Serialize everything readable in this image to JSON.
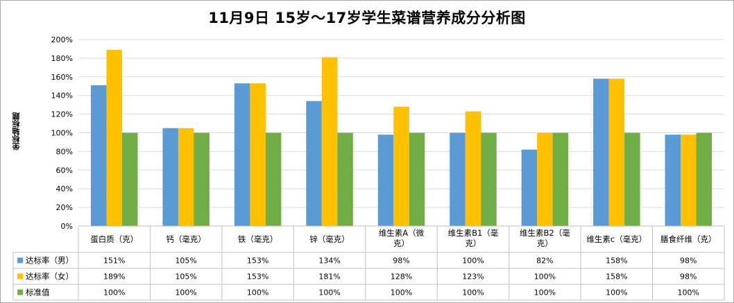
{
  "chart_data": {
    "type": "bar",
    "title": "11月9日  15岁～17岁学生菜谱营养成分分析图",
    "ylabel": "坐标轴标题",
    "xlabel": "",
    "ylim": [
      0,
      200
    ],
    "yticks": [
      "0%",
      "20%",
      "40%",
      "60%",
      "80%",
      "100%",
      "120%",
      "140%",
      "160%",
      "180%",
      "200%"
    ],
    "grid": true,
    "legend": "data-table",
    "categories": [
      [
        "蛋白质（克）"
      ],
      [
        "钙（毫克）"
      ],
      [
        "铁（毫克）"
      ],
      [
        "锌（毫克）"
      ],
      [
        "维生素A（微",
        "克）"
      ],
      [
        "维生素B1（毫",
        "克）"
      ],
      [
        "维生素B2（毫",
        "克）"
      ],
      [
        "维生素c（毫克）"
      ],
      [
        "膳食纤维（克）"
      ]
    ],
    "series": [
      {
        "name": "达标率（男）",
        "color": "#5b9bd5",
        "values": [
          151,
          105,
          153,
          134,
          98,
          100,
          82,
          158,
          98
        ],
        "labels": [
          "151%",
          "105%",
          "153%",
          "134%",
          "98%",
          "100%",
          "82%",
          "158%",
          "98%"
        ]
      },
      {
        "name": "达标率（女）",
        "color": "#ffc000",
        "values": [
          189,
          105,
          153,
          181,
          128,
          123,
          100,
          158,
          98
        ],
        "labels": [
          "189%",
          "105%",
          "153%",
          "181%",
          "128%",
          "123%",
          "100%",
          "158%",
          "98%"
        ]
      },
      {
        "name": "标准值",
        "color": "#70ad47",
        "values": [
          100,
          100,
          100,
          100,
          100,
          100,
          100,
          100,
          100
        ],
        "labels": [
          "100%",
          "100%",
          "100%",
          "100%",
          "100%",
          "100%",
          "100%",
          "100%",
          "100%"
        ]
      }
    ]
  }
}
